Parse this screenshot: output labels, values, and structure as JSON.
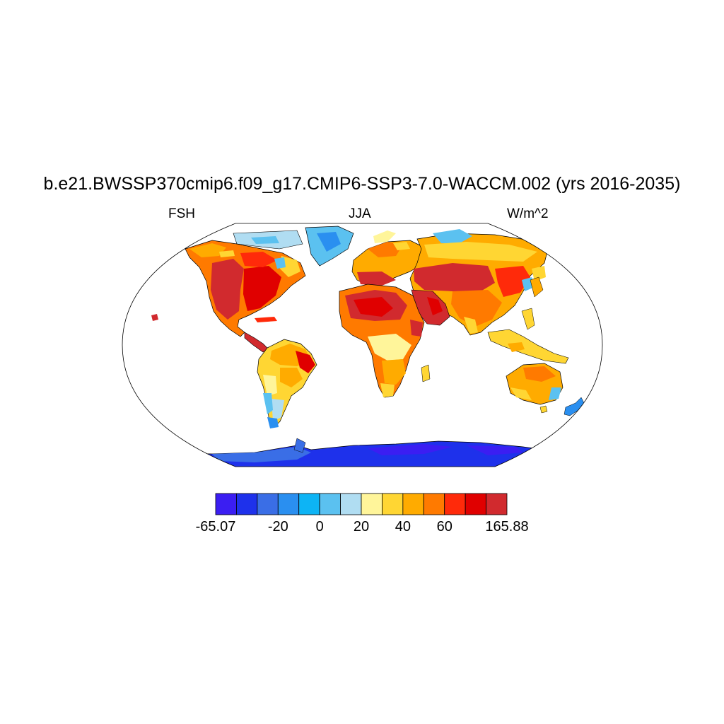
{
  "title": "b.e21.BWSSP370cmip6.f09_g17.CMIP6-SSP3-7.0-WACCM.002 (yrs 2016-2035)",
  "subtitle_left": "FSH",
  "subtitle_center": "JJA",
  "subtitle_right": "W/m^2",
  "colorbar": {
    "colors": [
      "#3b1ef2",
      "#1e31eb",
      "#3a6ee6",
      "#2a8ff0",
      "#0db4f5",
      "#5bc1f0",
      "#b0ddf2",
      "#fff59a",
      "#ffd633",
      "#ffab00",
      "#ff7a00",
      "#ff2a0a",
      "#e00000",
      "#d12a2e"
    ],
    "labels": [
      "-65.07",
      "-20",
      "0",
      "20",
      "40",
      "60",
      "165.88"
    ]
  }
}
